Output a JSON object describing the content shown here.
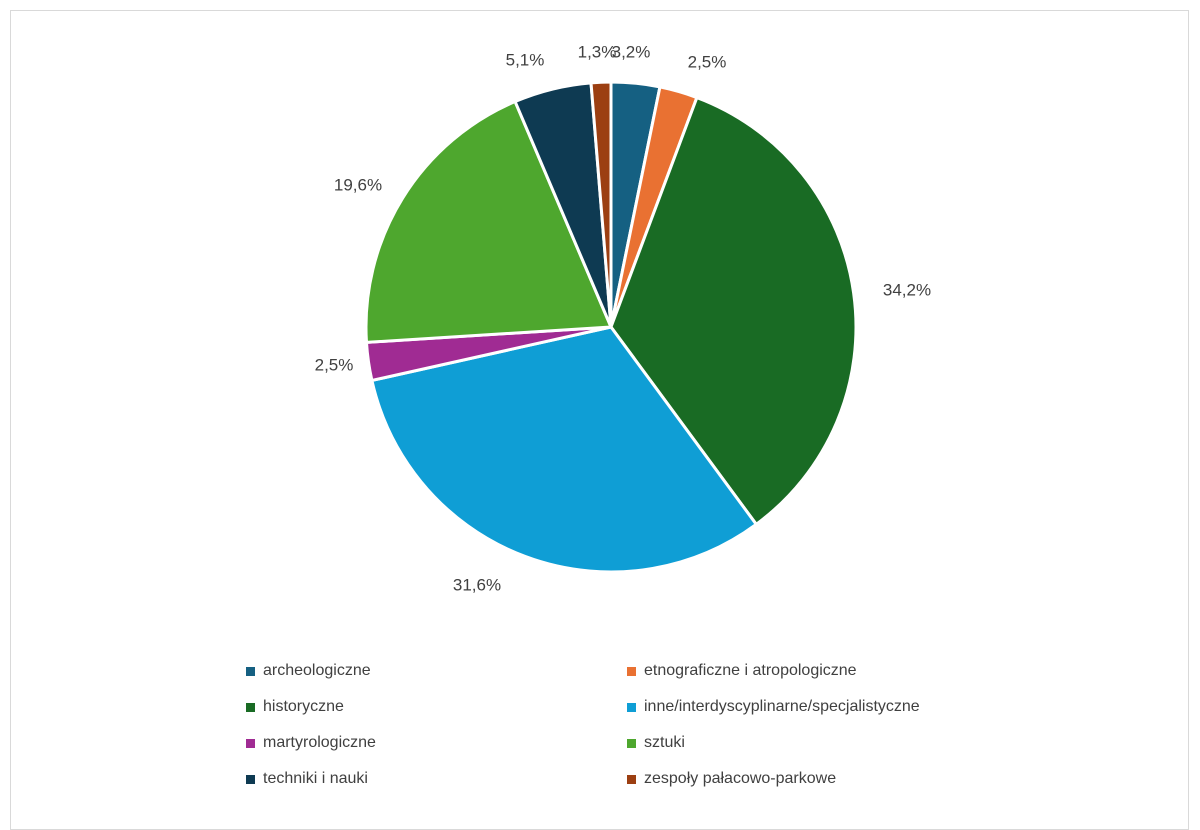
{
  "chart_data": {
    "type": "pie",
    "title": "",
    "categories": [
      "archeologiczne",
      "etnograficzne i atropologiczne",
      "historyczne",
      "inne/interdyscyplinarne/specjalistyczne",
      "martyrologiczne",
      "sztuki",
      "techniki i nauki",
      "zespoły pałacowo-parkowe"
    ],
    "values": [
      3.2,
      2.5,
      34.2,
      31.6,
      2.5,
      19.6,
      5.1,
      1.3
    ],
    "data_labels": [
      "3,2%",
      "2,5%",
      "34,2%",
      "31,6%",
      "2,5%",
      "19,6%",
      "5,1%",
      "1,3%"
    ],
    "colors": [
      "#156082",
      "#e97132",
      "#196b24",
      "#0f9ed5",
      "#a02b93",
      "#4ea72e",
      "#0e3a52",
      "#9c3f12"
    ],
    "legend_position": "bottom",
    "start_angle": "12 o'clock",
    "direction": "clockwise"
  }
}
